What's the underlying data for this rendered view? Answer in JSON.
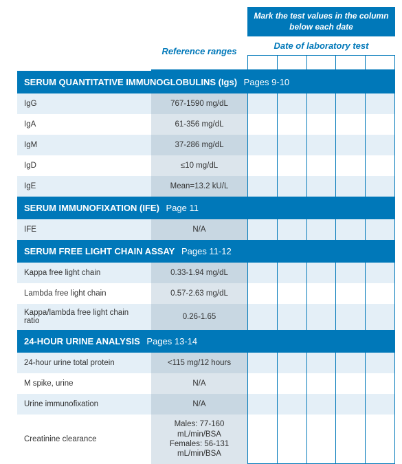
{
  "header": {
    "instruction": "Mark the test values in the column below each date",
    "reference_label": "Reference ranges",
    "date_label": "Date of laboratory test"
  },
  "sections": [
    {
      "title": "SERUM QUANTITATIVE IMMUNOGLOBULINS (Igs)",
      "pages": "Pages 9-10",
      "rows": [
        {
          "label": "IgG",
          "ref": "767-1590 mg/dL"
        },
        {
          "label": "IgA",
          "ref": "61-356 mg/dL"
        },
        {
          "label": "IgM",
          "ref": "37-286 mg/dL"
        },
        {
          "label": "IgD",
          "ref": "≤10 mg/dL"
        },
        {
          "label": "IgE",
          "ref": "Mean=13.2 kU/L"
        }
      ]
    },
    {
      "title": "SERUM IMMUNOFIXATION (IFE)",
      "pages": "Page 11",
      "rows": [
        {
          "label": "IFE",
          "ref": "N/A"
        }
      ]
    },
    {
      "title": "SERUM FREE LIGHT CHAIN ASSAY",
      "pages": "Pages 11-12",
      "rows": [
        {
          "label": "Kappa free light chain",
          "ref": "0.33-1.94 mg/dL"
        },
        {
          "label": "Lambda free light chain",
          "ref": "0.57-2.63 mg/dL"
        },
        {
          "label": "Kappa/lambda free light chain ratio",
          "ref": "0.26-1.65"
        }
      ]
    },
    {
      "title": "24-HOUR URINE ANALYSIS",
      "pages": "Pages 13-14",
      "rows": [
        {
          "label": "24-hour urine total protein",
          "ref": "<115 mg/12 hours"
        },
        {
          "label": "M spike, urine",
          "ref": "N/A"
        },
        {
          "label": "Urine immunofixation",
          "ref": "N/A"
        },
        {
          "label": "Creatinine clearance",
          "ref": "Males: 77-160 mL/min/BSA\nFemales: 56-131 mL/min/BSA"
        }
      ]
    }
  ],
  "colors": {
    "primary": "#0078b9",
    "row_alt": "#e4eff7",
    "ref_bg": "#c8d7e2"
  },
  "num_date_columns": 5
}
